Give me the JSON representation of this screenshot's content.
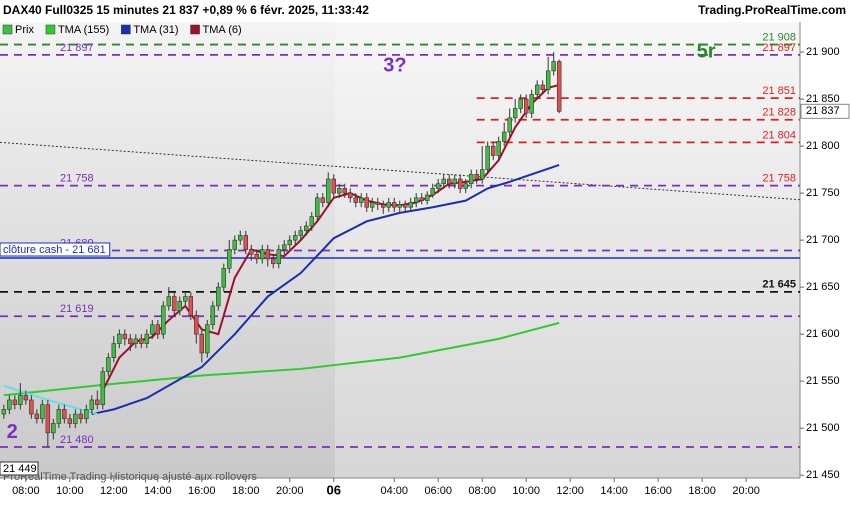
{
  "header": {
    "title": "DAX40 Full0325 15 minutes 21 837 +0,89 % 6 févr. 2025, 11:33:42",
    "site": "Trading.ProRealTime.com"
  },
  "footer": "ProRealTime Trading  Historique ajusté aux rollovers",
  "chart_data": {
    "type": "candlestick",
    "legend": [
      "Prix",
      "TMA (155)",
      "TMA (31)",
      "TMA (6)"
    ],
    "legend_colors": [
      "#3fbf3f",
      "#2ecc2e",
      "#1a2fb0",
      "#a0102a"
    ],
    "up_color": "#3fbf3f",
    "down_color": "#e05050",
    "xlim": [
      -0.7,
      144.8
    ],
    "ylim": [
      21447,
      21932
    ],
    "xticks": [
      {
        "value": 4,
        "label": "08:00"
      },
      {
        "value": 12,
        "label": "10:00"
      },
      {
        "value": 20,
        "label": "12:00"
      },
      {
        "value": 28,
        "label": "14:00"
      },
      {
        "value": 36,
        "label": "16:00"
      },
      {
        "value": 44,
        "label": "18:00"
      },
      {
        "value": 52,
        "label": "20:00"
      },
      {
        "value": 60,
        "label": "06"
      },
      {
        "value": 71,
        "label": "04:00"
      },
      {
        "value": 79,
        "label": "06:00"
      },
      {
        "value": 87,
        "label": "08:00"
      },
      {
        "value": 95,
        "label": "10:00"
      },
      {
        "value": 103,
        "label": "12:00"
      },
      {
        "value": 111,
        "label": "14:00"
      },
      {
        "value": 119,
        "label": "16:00"
      },
      {
        "value": 127,
        "label": "18:00"
      },
      {
        "value": 135,
        "label": "20:00"
      }
    ],
    "yticks": [
      {
        "value": 21450,
        "label": "21 450"
      },
      {
        "value": 21500,
        "label": "21 500"
      },
      {
        "value": 21550,
        "label": "21 550"
      },
      {
        "value": 21600,
        "label": "21 600"
      },
      {
        "value": 21650,
        "label": "21 650"
      },
      {
        "value": 21700,
        "label": "21 700"
      },
      {
        "value": 21750,
        "label": "21 750"
      },
      {
        "value": 21800,
        "label": "21 800"
      },
      {
        "value": 21850,
        "label": "21 850"
      },
      {
        "value": 21900,
        "label": "21 900"
      }
    ],
    "open": [
      21515,
      21520,
      21530,
      21525,
      21535,
      21530,
      21515,
      21510,
      21525,
      21495,
      21505,
      21520,
      21510,
      21505,
      21515,
      21510,
      21520,
      21530,
      21525,
      21560,
      21575,
      21590,
      21600,
      21595,
      21590,
      21595,
      21590,
      21600,
      21610,
      21600,
      21630,
      21640,
      21625,
      21635,
      21640,
      21620,
      21600,
      21580,
      21610,
      21630,
      21650,
      21670,
      21690,
      21700,
      21705,
      21690,
      21685,
      21680,
      21690,
      21680,
      21675,
      21690,
      21695,
      21700,
      21705,
      21710,
      21715,
      21725,
      21745,
      21740,
      21765,
      21750,
      21755,
      21750,
      21745,
      21740,
      21745,
      21735,
      21740,
      21738,
      21735,
      21740,
      21735,
      21738,
      21735,
      21740,
      21745,
      21742,
      21748,
      21755,
      21760,
      21765,
      21760,
      21765,
      21755,
      21760,
      21770,
      21765,
      21775,
      21800,
      21790,
      21805,
      21815,
      21830,
      21840,
      21850,
      21835,
      21855,
      21865,
      21860,
      21880,
      21890
    ],
    "high": [
      21525,
      21535,
      21535,
      21548,
      21540,
      21535,
      21520,
      21530,
      21530,
      21510,
      21525,
      21525,
      21515,
      21520,
      21520,
      21525,
      21535,
      21540,
      21565,
      21580,
      21598,
      21605,
      21605,
      21600,
      21600,
      21600,
      21605,
      21615,
      21615,
      21635,
      21650,
      21645,
      21640,
      21645,
      21645,
      21625,
      21605,
      21615,
      21635,
      21655,
      21675,
      21700,
      21705,
      21710,
      21710,
      21695,
      21690,
      21695,
      21695,
      21685,
      21695,
      21700,
      21705,
      21710,
      21715,
      21720,
      21730,
      21750,
      21750,
      21772,
      21770,
      21760,
      21760,
      21755,
      21750,
      21750,
      21750,
      21745,
      21745,
      21742,
      21745,
      21745,
      21742,
      21742,
      21745,
      21750,
      21750,
      21752,
      21760,
      21765,
      21770,
      21770,
      21770,
      21770,
      21765,
      21775,
      21775,
      21800,
      21805,
      21805,
      21810,
      21825,
      21840,
      21850,
      21855,
      21855,
      21860,
      21870,
      21870,
      21895,
      21900,
      21892
    ],
    "low": [
      21510,
      21515,
      21520,
      21520,
      21525,
      21510,
      21505,
      21505,
      21480,
      21488,
      21500,
      21505,
      21500,
      21500,
      21505,
      21505,
      21515,
      21520,
      21520,
      21555,
      21570,
      21585,
      21588,
      21582,
      21585,
      21585,
      21585,
      21595,
      21595,
      21595,
      21625,
      21620,
      21620,
      21630,
      21615,
      21590,
      21570,
      21575,
      21605,
      21625,
      21645,
      21665,
      21685,
      21695,
      21685,
      21678,
      21675,
      21675,
      21672,
      21670,
      21670,
      21685,
      21690,
      21695,
      21700,
      21705,
      21710,
      21720,
      21735,
      21735,
      21745,
      21745,
      21745,
      21740,
      21735,
      21735,
      21730,
      21730,
      21732,
      21728,
      21730,
      21730,
      21730,
      21730,
      21730,
      21735,
      21738,
      21738,
      21745,
      21750,
      21755,
      21755,
      21755,
      21750,
      21750,
      21755,
      21760,
      21760,
      21770,
      21785,
      21785,
      21800,
      21810,
      21825,
      21835,
      21830,
      21830,
      21850,
      21855,
      21855,
      21875,
      21835
    ],
    "close": [
      21520,
      21530,
      21525,
      21535,
      21530,
      21515,
      21510,
      21525,
      21495,
      21505,
      21520,
      21510,
      21505,
      21515,
      21510,
      21520,
      21530,
      21525,
      21560,
      21575,
      21590,
      21600,
      21595,
      21590,
      21595,
      21590,
      21600,
      21610,
      21600,
      21630,
      21640,
      21625,
      21635,
      21640,
      21620,
      21600,
      21580,
      21610,
      21630,
      21650,
      21670,
      21690,
      21700,
      21705,
      21690,
      21685,
      21680,
      21690,
      21680,
      21675,
      21690,
      21695,
      21700,
      21705,
      21710,
      21715,
      21725,
      21745,
      21740,
      21765,
      21750,
      21755,
      21750,
      21745,
      21740,
      21745,
      21735,
      21740,
      21738,
      21735,
      21740,
      21735,
      21738,
      21735,
      21740,
      21745,
      21742,
      21748,
      21755,
      21760,
      21765,
      21760,
      21765,
      21755,
      21760,
      21770,
      21765,
      21775,
      21800,
      21790,
      21805,
      21815,
      21830,
      21840,
      21850,
      21835,
      21855,
      21865,
      21860,
      21880,
      21890,
      21837
    ],
    "series": [
      {
        "name": "TMA (155)",
        "color": "#2ecc2e",
        "x": [
          0,
          18,
          36,
          54,
          72,
          90,
          101
        ],
        "values": [
          21535,
          21546,
          21556,
          21563,
          21575,
          21595,
          21612
        ]
      },
      {
        "name": "TMA (31)",
        "color": "#1a2fb0",
        "x": [
          16,
          20,
          26,
          32,
          36,
          42,
          48,
          54,
          60,
          66,
          72,
          78,
          84,
          88,
          92,
          96,
          101
        ],
        "values": [
          21515,
          21520,
          21532,
          21552,
          21565,
          21600,
          21640,
          21665,
          21702,
          21720,
          21729,
          21735,
          21742,
          21755,
          21762,
          21770,
          21780
        ]
      },
      {
        "name": "TMA (6)",
        "color": "#a0102a",
        "x": [
          18,
          21,
          24,
          27,
          30,
          33,
          36,
          39,
          42,
          45,
          48,
          51,
          54,
          57,
          60,
          63,
          66,
          69,
          72,
          75,
          78,
          81,
          84,
          87,
          90,
          93,
          96,
          99,
          101
        ],
        "values": [
          21540,
          21575,
          21592,
          21597,
          21615,
          21630,
          21605,
          21600,
          21660,
          21690,
          21685,
          21683,
          21700,
          21720,
          21745,
          21750,
          21742,
          21738,
          21737,
          21740,
          21748,
          21760,
          21762,
          21765,
          21785,
          21820,
          21845,
          21862,
          21865
        ]
      },
      {
        "color": "#5fe0e8",
        "x": [
          0,
          8,
          17
        ],
        "values": [
          21545,
          21530,
          21515
        ]
      }
    ],
    "trend": {
      "x": [
        -0.7,
        144.8
      ],
      "values": [
        21804,
        21743
      ]
    },
    "levels": [
      {
        "value": 21908,
        "color": "#2a8a2a",
        "dash": "8,6",
        "right_label": "21 908",
        "right_color": "#2a8a2a"
      },
      {
        "value": 21897,
        "color": "#7a2fbf",
        "dash": "8,6",
        "left_label": "21 897",
        "right_label": "21 897",
        "right_color": "#e02020"
      },
      {
        "value": 21851,
        "color": "#e02020",
        "dash": "8,6",
        "x_start": 86,
        "right_label": "21 851",
        "right_color": "#e02020"
      },
      {
        "value": 21828,
        "color": "#e02020",
        "dash": "8,6",
        "x_start": 86,
        "right_label": "21 828",
        "right_color": "#e02020"
      },
      {
        "value": 21804,
        "color": "#e02020",
        "dash": "8,6",
        "x_start": 86,
        "right_label": "21 804",
        "right_color": "#e02020"
      },
      {
        "value": 21758,
        "color": "#7a2fbf",
        "dash": "8,6",
        "left_label": "21 758",
        "right_label": "21 758",
        "right_color": "#e02020"
      },
      {
        "value": 21689,
        "color": "#7a2fbf",
        "dash": "8,6",
        "left_label": "21 689"
      },
      {
        "value": 21681,
        "color": "#1a2fd0",
        "dash": "none",
        "box_label": "clôture cash - 21 681"
      },
      {
        "value": 21645,
        "color": "#111111",
        "dash": "8,6",
        "right_label": "21 645",
        "right_color": "#111111"
      },
      {
        "value": 21619,
        "color": "#7a2fbf",
        "dash": "8,6",
        "left_label": "21 619"
      },
      {
        "value": 21480,
        "color": "#7a2fbf",
        "dash": "8,6",
        "left_label": "21 480"
      }
    ],
    "last": {
      "value": 21837,
      "label": "21 837"
    },
    "low_box": "21 449",
    "annotations": [
      {
        "text": "3?",
        "x": 69,
        "y": 21885,
        "color": "#7a2fbf"
      },
      {
        "text": "5r",
        "x": 126,
        "y": 21900,
        "color": "#2a8a2a"
      },
      {
        "text": "2",
        "x": 0.5,
        "y": 21495,
        "color": "#7a2fbf"
      }
    ]
  }
}
